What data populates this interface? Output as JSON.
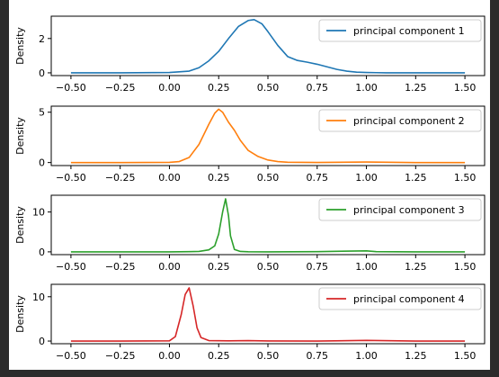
{
  "chart_data": [
    {
      "type": "line",
      "xlabel": "",
      "ylabel": "Density",
      "xlim": [
        -0.6,
        1.6
      ],
      "ylim": [
        -0.16,
        3.3
      ],
      "xticks": [
        -0.5,
        -0.25,
        0.0,
        0.25,
        0.5,
        0.75,
        1.0,
        1.25,
        1.5
      ],
      "xtick_labels": [
        "−0.50",
        "−0.25",
        "0.00",
        "0.25",
        "0.50",
        "0.75",
        "1.00",
        "1.25",
        "1.50"
      ],
      "yticks": [
        0,
        2
      ],
      "ytick_labels": [
        "0",
        "2"
      ],
      "legend_position": "top-right",
      "series": [
        {
          "name": "principal component 1",
          "color": "#1f77b4",
          "x": [
            -0.5,
            -0.25,
            0.0,
            0.1,
            0.15,
            0.2,
            0.25,
            0.3,
            0.35,
            0.4,
            0.43,
            0.47,
            0.5,
            0.55,
            0.6,
            0.65,
            0.7,
            0.75,
            0.8,
            0.85,
            0.9,
            0.95,
            1.0,
            1.05,
            1.1,
            1.25,
            1.5
          ],
          "y": [
            0.0,
            0.0,
            0.02,
            0.1,
            0.3,
            0.7,
            1.25,
            2.0,
            2.7,
            3.05,
            3.1,
            2.85,
            2.4,
            1.6,
            0.95,
            0.72,
            0.62,
            0.5,
            0.35,
            0.2,
            0.1,
            0.04,
            0.02,
            0.01,
            0.0,
            0.0,
            0.0
          ]
        }
      ]
    },
    {
      "type": "line",
      "xlabel": "",
      "ylabel": "Density",
      "xlim": [
        -0.6,
        1.6
      ],
      "ylim": [
        -0.3,
        5.6
      ],
      "xticks": [
        -0.5,
        -0.25,
        0.0,
        0.25,
        0.5,
        0.75,
        1.0,
        1.25,
        1.5
      ],
      "xtick_labels": [
        "−0.50",
        "−0.25",
        "0.00",
        "0.25",
        "0.50",
        "0.75",
        "1.00",
        "1.25",
        "1.50"
      ],
      "yticks": [
        0,
        5
      ],
      "ytick_labels": [
        "0",
        "5"
      ],
      "legend_position": "top-right",
      "series": [
        {
          "name": "principal component 2",
          "color": "#ff7f0e",
          "x": [
            -0.5,
            -0.25,
            0.0,
            0.05,
            0.1,
            0.15,
            0.2,
            0.23,
            0.25,
            0.27,
            0.3,
            0.33,
            0.36,
            0.4,
            0.45,
            0.5,
            0.55,
            0.6,
            0.75,
            1.0,
            1.25,
            1.5
          ],
          "y": [
            0.0,
            0.0,
            0.02,
            0.1,
            0.5,
            1.8,
            3.8,
            4.9,
            5.3,
            5.0,
            4.0,
            3.2,
            2.2,
            1.2,
            0.6,
            0.25,
            0.1,
            0.03,
            0.01,
            0.05,
            0.0,
            0.0
          ]
        }
      ]
    },
    {
      "type": "line",
      "xlabel": "",
      "ylabel": "Density",
      "xlim": [
        -0.6,
        1.6
      ],
      "ylim": [
        -0.7,
        14.2
      ],
      "xticks": [
        -0.5,
        -0.25,
        0.0,
        0.25,
        0.5,
        0.75,
        1.0,
        1.25,
        1.5
      ],
      "xtick_labels": [
        "−0.50",
        "−0.25",
        "0.00",
        "0.25",
        "0.50",
        "0.75",
        "1.00",
        "1.25",
        "1.50"
      ],
      "yticks": [
        0,
        10
      ],
      "ytick_labels": [
        "0",
        "10"
      ],
      "legend_position": "top-right",
      "series": [
        {
          "name": "principal component 3",
          "color": "#2ca02c",
          "x": [
            -0.5,
            -0.25,
            0.0,
            0.1,
            0.15,
            0.2,
            0.23,
            0.25,
            0.27,
            0.285,
            0.3,
            0.31,
            0.33,
            0.36,
            0.4,
            0.5,
            0.75,
            1.0,
            1.05,
            1.25,
            1.5
          ],
          "y": [
            0.0,
            0.0,
            0.0,
            0.05,
            0.1,
            0.5,
            1.5,
            4.5,
            10.0,
            13.3,
            9.0,
            4.0,
            0.6,
            0.1,
            0.02,
            0.0,
            0.05,
            0.25,
            0.05,
            0.0,
            0.0
          ]
        }
      ]
    },
    {
      "type": "line",
      "xlabel": "",
      "ylabel": "Density",
      "xlim": [
        -0.6,
        1.6
      ],
      "ylim": [
        -0.6,
        12.8
      ],
      "xticks": [
        -0.5,
        -0.25,
        0.0,
        0.25,
        0.5,
        0.75,
        1.0,
        1.25,
        1.5
      ],
      "xtick_labels": [
        "−0.50",
        "−0.25",
        "0.00",
        "0.25",
        "0.50",
        "0.75",
        "1.00",
        "1.25",
        "1.50"
      ],
      "yticks": [
        0,
        10
      ],
      "ytick_labels": [
        "0",
        "10"
      ],
      "legend_position": "top-right",
      "series": [
        {
          "name": "principal component 4",
          "color": "#d62728",
          "x": [
            -0.5,
            -0.25,
            0.0,
            0.03,
            0.06,
            0.08,
            0.1,
            0.12,
            0.14,
            0.16,
            0.2,
            0.3,
            0.4,
            0.5,
            0.75,
            1.0,
            1.25,
            1.5
          ],
          "y": [
            0.0,
            0.0,
            0.05,
            1.0,
            6.0,
            10.5,
            12.0,
            8.0,
            3.0,
            0.8,
            0.1,
            0.05,
            0.1,
            0.02,
            0.0,
            0.15,
            0.0,
            0.0
          ]
        }
      ]
    }
  ]
}
